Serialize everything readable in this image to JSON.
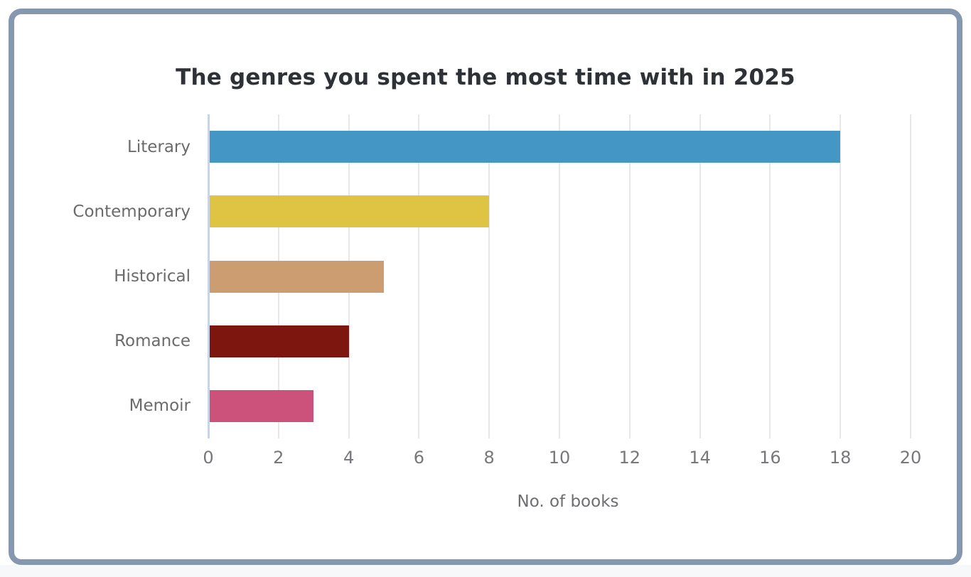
{
  "page": {
    "background_color": "#ffffff",
    "frame_border_color": "#8598b0",
    "bottom_strip_color": "#f7f8f9"
  },
  "chart_data": {
    "type": "bar",
    "orientation": "horizontal",
    "title": "The genres you spent the most time with in 2025",
    "categories": [
      "Literary",
      "Contemporary",
      "Historical",
      "Romance",
      "Memoir"
    ],
    "values": [
      18,
      8,
      5,
      4,
      3
    ],
    "bar_colors": [
      "#4496c5",
      "#dfc342",
      "#cc9d70",
      "#7e1610",
      "#cc527b"
    ],
    "xlabel": "No. of books",
    "xlim": [
      0,
      20
    ],
    "xticks": [
      0,
      2,
      4,
      6,
      8,
      10,
      12,
      14,
      16,
      18,
      20
    ],
    "grid": "vertical gridlines at each x tick",
    "legend": "none",
    "colors": {
      "title": "#2e3136",
      "category_label": "#6b6b6b",
      "tick_label": "#77787b",
      "axis_label": "#6d6e71",
      "gridline": "#e7e7e9",
      "zero_axis_line": "#c9d4e8"
    }
  }
}
